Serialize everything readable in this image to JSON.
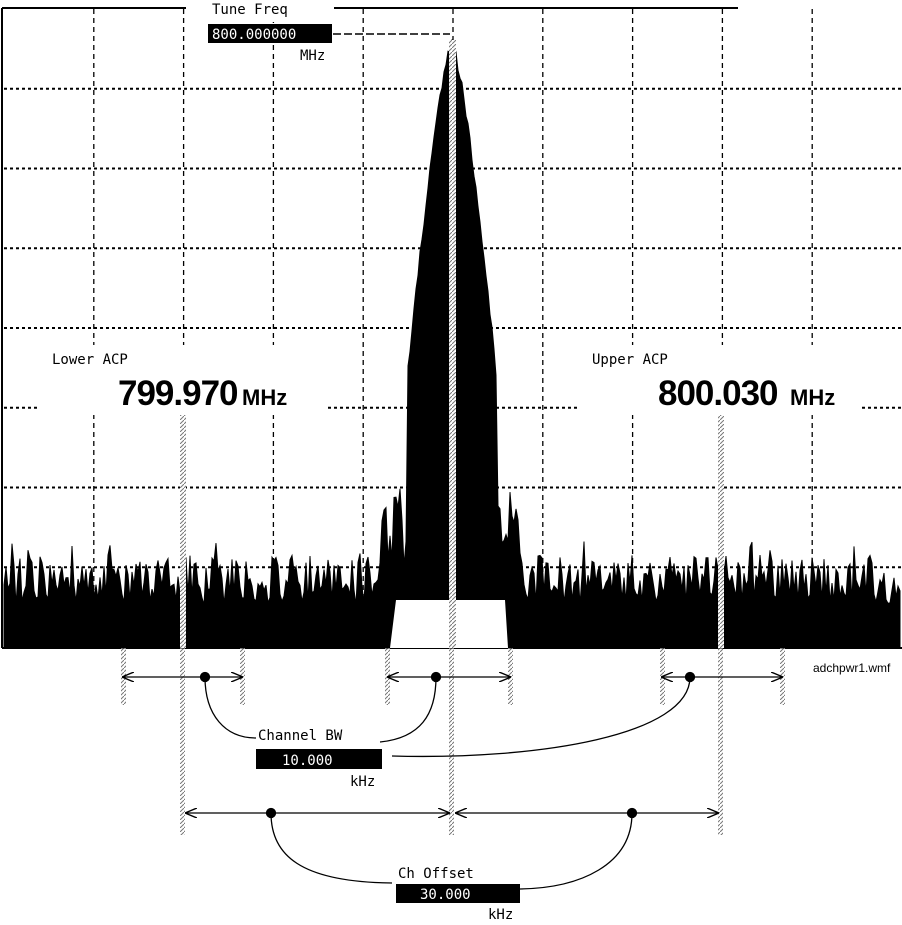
{
  "tune_freq": {
    "label": "Tune Freq",
    "value": "800.000000",
    "unit": "MHz"
  },
  "lower_acp": {
    "label": "Lower ACP",
    "value": "799.970",
    "unit": "MHz"
  },
  "upper_acp": {
    "label": "Upper ACP",
    "value": "800.030",
    "unit": "MHz"
  },
  "channel_bw": {
    "label": "Channel BW",
    "value": "10.000",
    "unit": "kHz"
  },
  "ch_offset": {
    "label": "Ch Offset",
    "value": "30.000",
    "unit": "kHz"
  },
  "filename": "adchpwr1.wmf",
  "colors": {
    "trace": "#000000",
    "background": "#ffffff",
    "grid": "#000000",
    "hatch": "#888888"
  }
}
